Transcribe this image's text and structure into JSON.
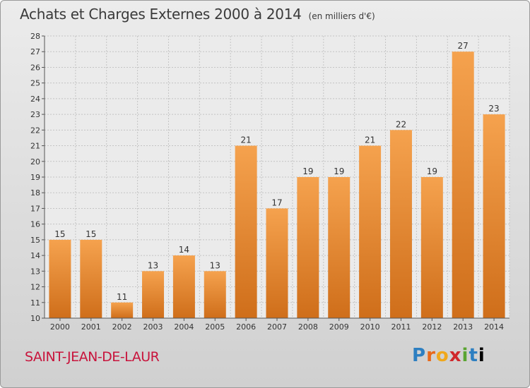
{
  "header": {
    "title": "Achats et Charges Externes 2000 à 2014",
    "unit": "(en milliers d'€)"
  },
  "footer": {
    "commune": "SAINT-JEAN-DE-LAUR",
    "logo": [
      "P",
      "r",
      "o",
      "x",
      "i",
      "t",
      "i"
    ]
  },
  "colors": {
    "bar_top": "#f5a24e",
    "bar_bottom": "#cf6e1a",
    "commune": "#c8143c"
  },
  "chart_data": {
    "type": "bar",
    "title": "Achats et Charges Externes 2000 à 2014",
    "categories": [
      "2000",
      "2001",
      "2002",
      "2003",
      "2004",
      "2005",
      "2006",
      "2007",
      "2008",
      "2009",
      "2010",
      "2011",
      "2012",
      "2013",
      "2014"
    ],
    "values": [
      15,
      15,
      11,
      13,
      14,
      13,
      21,
      17,
      19,
      19,
      21,
      22,
      19,
      27,
      23
    ],
    "ylim": [
      10,
      28
    ],
    "yticks": [
      10,
      11,
      12,
      13,
      14,
      15,
      16,
      17,
      18,
      19,
      20,
      21,
      22,
      23,
      24,
      25,
      26,
      27,
      28
    ],
    "grid": true,
    "xlabel": "",
    "ylabel": ""
  }
}
